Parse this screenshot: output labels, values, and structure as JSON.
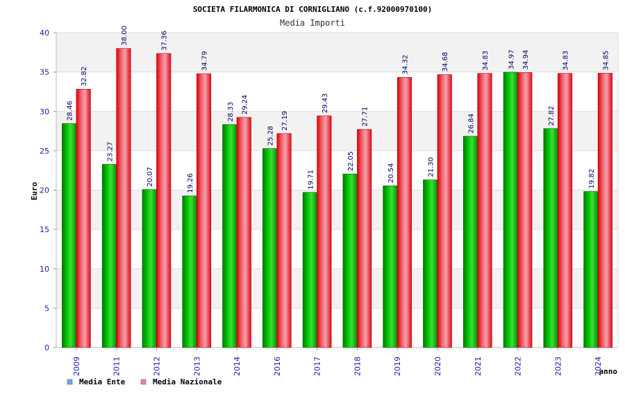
{
  "chart_data": {
    "type": "bar",
    "title": "SOCIETA FILARMONICA DI CORNIGLIANO (c.f.92000970100)",
    "subtitle": "Media Importi",
    "xlabel": "anno",
    "ylabel": "Euro",
    "ylim": [
      0,
      40
    ],
    "yticks": [
      0,
      5,
      10,
      15,
      20,
      25,
      30,
      35,
      40
    ],
    "grid": true,
    "legend_position": "bottom-left",
    "categories": [
      "2009",
      "2011",
      "2012",
      "2013",
      "2014",
      "2016",
      "2017",
      "2018",
      "2019",
      "2020",
      "2021",
      "2022",
      "2023",
      "2024"
    ],
    "series": [
      {
        "name": "Media Ente",
        "color": "#00b000",
        "legend_color": "#6fa8e8",
        "values": [
          28.46,
          23.27,
          20.07,
          19.26,
          28.33,
          25.28,
          19.71,
          22.05,
          20.54,
          21.3,
          26.84,
          34.97,
          27.82,
          19.82
        ],
        "labels": [
          "28.46",
          "23.27",
          "20.07",
          "19.26",
          "28.33",
          "25.28",
          "19.71",
          "22.05",
          "20.54",
          "21.30",
          "26.84",
          "34.97",
          "27.82",
          "19.82"
        ]
      },
      {
        "name": "Media Nazionale",
        "color": "#e81020",
        "legend_color": "#e87fb8",
        "values": [
          32.82,
          38.0,
          37.36,
          34.79,
          29.24,
          27.19,
          29.43,
          27.71,
          34.32,
          34.68,
          34.83,
          34.94,
          34.83,
          34.85
        ],
        "labels": [
          "32.82",
          "38.00",
          "37.36",
          "34.79",
          "29.24",
          "27.19",
          "29.43",
          "27.71",
          "34.32",
          "34.68",
          "34.83",
          "34.94",
          "34.83",
          "34.85"
        ]
      }
    ]
  }
}
